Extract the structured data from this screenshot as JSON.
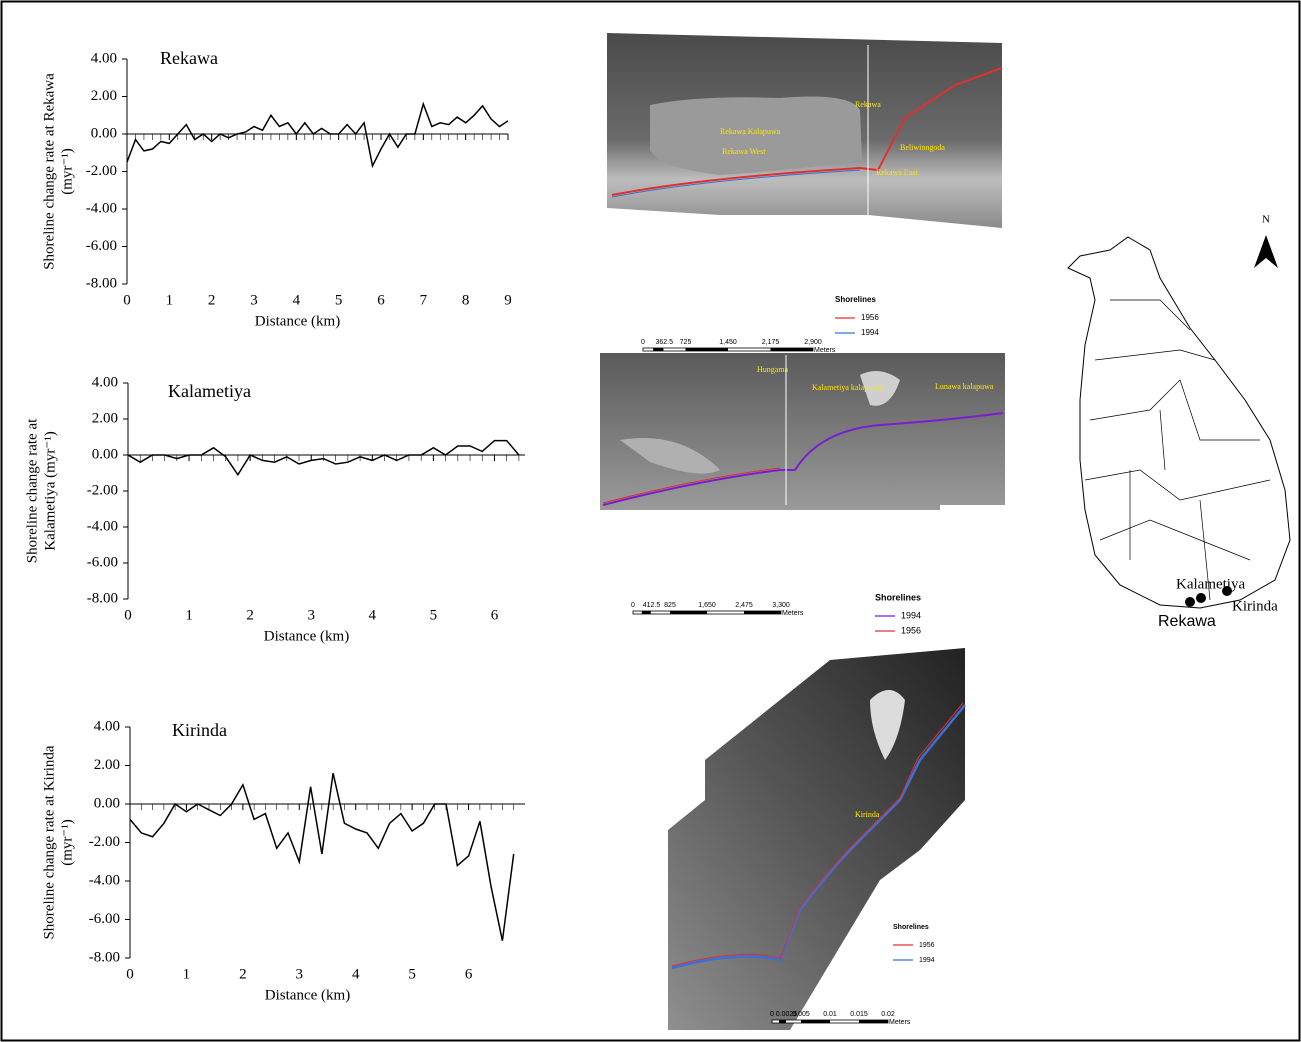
{
  "chart_data": [
    {
      "type": "line",
      "title": "Rekawa",
      "xlabel": "Distance (km)",
      "ylabel": [
        "Shoreline change rate at Rekawa",
        "(myr⁻¹)"
      ],
      "xlim": [
        0,
        9
      ],
      "ylim": [
        -8,
        4
      ],
      "xticks": [
        0,
        1,
        2,
        3,
        4,
        5,
        6,
        7,
        8,
        9
      ],
      "yticks": [
        {
          "value": -8,
          "label": "-8.00"
        },
        {
          "value": -6,
          "label": "-6.00"
        },
        {
          "value": -4,
          "label": "-4.00"
        },
        {
          "value": -2,
          "label": "-2.00"
        },
        {
          "value": 0,
          "label": "0.00"
        },
        {
          "value": 2,
          "label": "2.00"
        },
        {
          "value": 4,
          "label": "4.00"
        }
      ],
      "color": "#000000",
      "x": [
        0,
        0.2,
        0.4,
        0.6,
        0.8,
        1.0,
        1.2,
        1.4,
        1.6,
        1.8,
        2.0,
        2.2,
        2.4,
        2.6,
        2.8,
        3.0,
        3.2,
        3.4,
        3.6,
        3.8,
        4.0,
        4.2,
        4.4,
        4.6,
        4.8,
        5.0,
        5.2,
        5.4,
        5.6,
        5.8,
        6.0,
        6.2,
        6.4,
        6.6,
        6.8,
        7.0,
        7.2,
        7.4,
        7.6,
        7.8,
        8.0,
        8.2,
        8.4,
        8.6,
        8.8,
        9.0
      ],
      "values": [
        -1.5,
        -0.3,
        -0.9,
        -0.8,
        -0.4,
        -0.5,
        0,
        0.5,
        -0.3,
        0,
        -0.4,
        0,
        -0.2,
        0,
        0.1,
        0.4,
        0.2,
        1.0,
        0.4,
        0.6,
        0,
        0.6,
        0,
        0.3,
        0,
        0,
        0.5,
        0,
        0.6,
        -1.7,
        -0.8,
        0,
        -0.7,
        0,
        0,
        1.6,
        0.4,
        0.6,
        0.5,
        0.9,
        0.6,
        1.0,
        1.5,
        0.8,
        0.4,
        0.7
      ]
    },
    {
      "type": "line",
      "title": "Kalametiya",
      "xlabel": "Distance (km)",
      "ylabel": [
        "Shoreline change rate at",
        "Kalametiya  (myr⁻¹)"
      ],
      "xlim": [
        0,
        6.5
      ],
      "ylim": [
        -8,
        4
      ],
      "xticks": [
        0,
        1,
        2,
        3,
        4,
        5,
        6
      ],
      "yticks": [
        {
          "value": -8,
          "label": "-8.00"
        },
        {
          "value": -6,
          "label": "-6.00"
        },
        {
          "value": -4,
          "label": "-4.00"
        },
        {
          "value": -2,
          "label": "-2.00"
        },
        {
          "value": 0,
          "label": "0.00"
        },
        {
          "value": 2,
          "label": "2.00"
        },
        {
          "value": 4,
          "label": "4.00"
        }
      ],
      "color": "#000000",
      "x": [
        0,
        0.2,
        0.4,
        0.6,
        0.8,
        1.0,
        1.2,
        1.4,
        1.6,
        1.8,
        2.0,
        2.2,
        2.4,
        2.6,
        2.8,
        3.0,
        3.2,
        3.4,
        3.6,
        3.8,
        4.0,
        4.2,
        4.4,
        4.6,
        4.8,
        5.0,
        5.2,
        5.4,
        5.6,
        5.8,
        6.0,
        6.2,
        6.4
      ],
      "values": [
        0,
        -0.4,
        0,
        0,
        -0.2,
        0,
        0,
        0.4,
        -0.1,
        -1.1,
        0,
        -0.3,
        -0.4,
        -0.1,
        -0.5,
        -0.3,
        -0.2,
        -0.5,
        -0.4,
        -0.1,
        -0.3,
        0,
        -0.3,
        0,
        0,
        0.4,
        0,
        0.5,
        0.5,
        0.2,
        0.8,
        0.8,
        0
      ]
    },
    {
      "type": "line",
      "title": "Kirinda",
      "xlabel": "Distance (km)",
      "ylabel": [
        "Shoreline change rate at Kirinda",
        "(myr⁻¹)"
      ],
      "xlim": [
        0,
        7
      ],
      "ylim": [
        -8,
        4
      ],
      "xticks": [
        0,
        1,
        2,
        3,
        4,
        5,
        6
      ],
      "yticks": [
        {
          "value": -8,
          "label": "-8.00"
        },
        {
          "value": -6,
          "label": "-6.00"
        },
        {
          "value": -4,
          "label": "-4.00"
        },
        {
          "value": -2,
          "label": "-2.00"
        },
        {
          "value": 0,
          "label": "0.00"
        },
        {
          "value": 2,
          "label": "2.00"
        },
        {
          "value": 4,
          "label": "4.00"
        }
      ],
      "color": "#000000",
      "x": [
        0,
        0.2,
        0.4,
        0.6,
        0.8,
        1.0,
        1.2,
        1.4,
        1.6,
        1.8,
        2.0,
        2.2,
        2.4,
        2.6,
        2.8,
        3.0,
        3.2,
        3.4,
        3.6,
        3.8,
        4.0,
        4.2,
        4.4,
        4.6,
        4.8,
        5.0,
        5.2,
        5.4,
        5.6,
        5.8,
        6.0,
        6.2,
        6.4,
        6.6,
        6.8
      ],
      "values": [
        -0.8,
        -1.5,
        -1.7,
        -1.0,
        0,
        -0.4,
        0,
        -0.3,
        -0.6,
        0,
        1.0,
        -0.8,
        -0.5,
        -2.3,
        -1.5,
        -3.0,
        0.9,
        -2.6,
        1.6,
        -1.0,
        -1.3,
        -1.5,
        -2.3,
        -1.0,
        -0.5,
        -1.4,
        -1.0,
        0,
        0,
        -3.2,
        -2.7,
        -0.9,
        -4.3,
        -7.1,
        -2.6
      ]
    }
  ],
  "maps": {
    "rekawa_image": {
      "labels": [
        "Rekawa Kalapuwa",
        "Rekawa West",
        "Rekawa",
        "Beliwinngoda",
        "Rekawa East"
      ],
      "legend": {
        "title": "Shorelines",
        "items": [
          "1956",
          "1994"
        ]
      },
      "scale": [
        "0",
        "362.5",
        "725",
        "1,450",
        "2,175",
        "2,900",
        "Meters"
      ]
    },
    "kalametiya_image": {
      "labels": [
        "Hungama",
        "Kalametiya kalapuwa",
        "Lunawa kalapuwa"
      ],
      "legend": {
        "title": "Shorelines",
        "items": [
          "1994",
          "1956"
        ]
      },
      "scale": [
        "0",
        "412.5",
        "825",
        "1,650",
        "2,475",
        "3,300",
        "Meters"
      ]
    },
    "kirinda_image": {
      "labels": [
        "Kirinda"
      ],
      "legend": {
        "title": "Shorelines",
        "items": [
          "1956",
          "1994"
        ]
      },
      "scale": [
        "0",
        "0.0025",
        "0.005",
        "0.01",
        "0.015",
        "0.02",
        "Meters"
      ]
    },
    "sri_lanka": {
      "north": "N",
      "sites": [
        "Kalametiya",
        "Rekawa",
        "Kirinda"
      ]
    }
  }
}
